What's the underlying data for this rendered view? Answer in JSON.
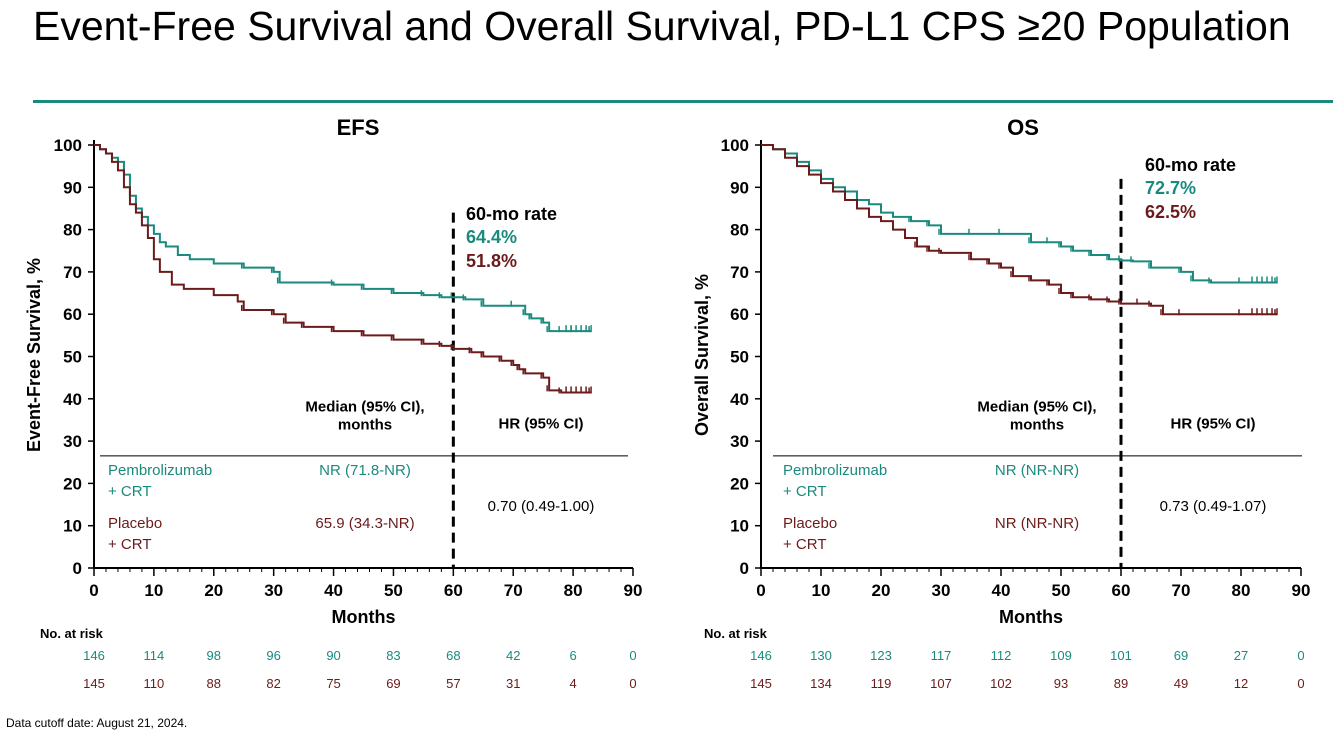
{
  "slide": {
    "title": "Event-Free Survival and Overall Survival, PD-L1 CPS ≥20 Population",
    "footnote": "Data cutoff date: August 21, 2024."
  },
  "colors": {
    "pembro": "#1a8a7e",
    "placebo": "#6b1b1b",
    "accent_rule": "#1a8a7e"
  },
  "chart_data": [
    {
      "type": "line",
      "title": "EFS",
      "xlabel": "Months",
      "ylabel": "Event-Free Survival, %",
      "xlim": [
        0,
        90
      ],
      "ylim": [
        0,
        100
      ],
      "x_ticks": [
        0,
        10,
        20,
        30,
        40,
        50,
        60,
        70,
        80,
        90
      ],
      "y_ticks": [
        0,
        10,
        20,
        30,
        40,
        50,
        60,
        70,
        80,
        90,
        100
      ],
      "landmark_x": 60,
      "rate_header": "60-mo rate",
      "rates": [
        "64.4%",
        "51.8%"
      ],
      "table": {
        "median_header": "Median (95% CI),\nmonths",
        "hr_header": "HR (95% CI)",
        "rows": [
          {
            "arm": "Pembrolizumab\n+ CRT",
            "median": "NR (71.8-NR)"
          },
          {
            "arm": "Placebo\n+ CRT",
            "median": "65.9 (34.3-NR)"
          }
        ],
        "hr": "0.70 (0.49-1.00)"
      },
      "at_risk": {
        "label": "No. at risk",
        "rows": [
          [
            146,
            114,
            98,
            96,
            90,
            83,
            68,
            42,
            6,
            0
          ],
          [
            145,
            110,
            88,
            82,
            75,
            69,
            57,
            31,
            4,
            0
          ]
        ]
      },
      "series": [
        {
          "name": "Pembrolizumab + CRT",
          "x": [
            0,
            1,
            2,
            3,
            4,
            5,
            6,
            7,
            8,
            9,
            10,
            11,
            12,
            14,
            16,
            20,
            25,
            30,
            31,
            40,
            45,
            50,
            55,
            58,
            60,
            62,
            65,
            70,
            72,
            73,
            75,
            76,
            78,
            80,
            83
          ],
          "y": [
            100,
            99,
            98,
            97,
            96,
            93,
            88,
            85,
            83,
            81,
            79,
            77,
            76,
            74,
            73,
            72,
            71,
            70,
            67.5,
            67,
            66,
            65,
            64.5,
            64,
            64,
            63.5,
            62,
            62,
            60,
            59,
            58,
            56,
            56,
            56,
            56
          ]
        },
        {
          "name": "Placebo + CRT",
          "x": [
            0,
            1,
            2,
            3,
            4,
            5,
            6,
            7,
            8,
            9,
            10,
            11,
            13,
            15,
            20,
            24,
            25,
            30,
            32,
            35,
            40,
            45,
            50,
            55,
            58,
            60,
            63,
            65,
            68,
            70,
            71,
            72,
            75,
            76,
            78,
            83
          ],
          "y": [
            100,
            99,
            98,
            96,
            94,
            90,
            86,
            84,
            81,
            78,
            73,
            70,
            67,
            66,
            64.5,
            63,
            61,
            60,
            58,
            57,
            56,
            55,
            54,
            53,
            52.5,
            51.8,
            51,
            50,
            49,
            48,
            47,
            46,
            45,
            42,
            41.5,
            41.5
          ]
        }
      ]
    },
    {
      "type": "line",
      "title": "OS",
      "xlabel": "Months",
      "ylabel": "Overall Survival, %",
      "xlim": [
        0,
        90
      ],
      "ylim": [
        0,
        100
      ],
      "x_ticks": [
        0,
        10,
        20,
        30,
        40,
        50,
        60,
        70,
        80,
        90
      ],
      "y_ticks": [
        0,
        10,
        20,
        30,
        40,
        50,
        60,
        70,
        80,
        90,
        100
      ],
      "landmark_x": 60,
      "rate_header": "60-mo rate",
      "rates": [
        "72.7%",
        "62.5%"
      ],
      "table": {
        "median_header": "Median (95% CI),\nmonths",
        "hr_header": "HR (95% CI)",
        "rows": [
          {
            "arm": "Pembrolizumab\n+ CRT",
            "median": "NR (NR-NR)"
          },
          {
            "arm": "Placebo\n+ CRT",
            "median": "NR (NR-NR)"
          }
        ],
        "hr": "0.73 (0.49-1.07)"
      },
      "at_risk": {
        "label": "No. at risk",
        "rows": [
          [
            146,
            130,
            123,
            117,
            112,
            109,
            101,
            69,
            27,
            0
          ],
          [
            145,
            134,
            119,
            107,
            102,
            93,
            89,
            49,
            12,
            0
          ]
        ]
      },
      "series": [
        {
          "name": "Pembrolizumab + CRT",
          "x": [
            0,
            2,
            4,
            6,
            8,
            10,
            12,
            14,
            16,
            18,
            20,
            22,
            25,
            28,
            30,
            35,
            40,
            45,
            48,
            50,
            52,
            55,
            58,
            60,
            62,
            65,
            70,
            72,
            75,
            80,
            86
          ],
          "y": [
            100,
            99,
            98,
            96,
            94,
            92,
            90,
            89,
            87,
            86,
            84,
            83,
            82,
            81,
            79,
            79,
            79,
            77,
            77,
            76,
            75,
            74,
            73,
            72.7,
            72.5,
            71,
            70,
            68,
            67.5,
            67.5,
            67.5
          ]
        },
        {
          "name": "Placebo + CRT",
          "x": [
            0,
            2,
            4,
            6,
            8,
            10,
            12,
            14,
            16,
            18,
            20,
            22,
            24,
            26,
            28,
            30,
            35,
            38,
            40,
            42,
            45,
            48,
            50,
            52,
            55,
            58,
            60,
            63,
            65,
            67,
            70,
            80,
            86
          ],
          "y": [
            100,
            99,
            97,
            95,
            93,
            91,
            89,
            87,
            85,
            83,
            82,
            80,
            78,
            76,
            75,
            74.5,
            73,
            72,
            71,
            69,
            68,
            67,
            65,
            64,
            63.5,
            63,
            62.5,
            62.5,
            62,
            60,
            60,
            60,
            60
          ]
        }
      ]
    }
  ]
}
